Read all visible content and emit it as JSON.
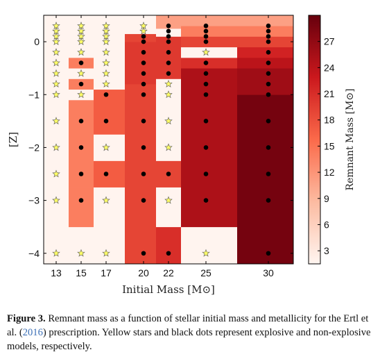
{
  "figure": {
    "caption_label": "Figure 3.",
    "caption_part1": "Remnant mass as a function of stellar initial mass and metallicity for the Ertl et al. (",
    "caption_citation": "2016",
    "caption_part2": ") prescription. Yellow stars and black dots represent explosive and non-explosive models, respectively."
  },
  "chart_data": {
    "type": "heatmap",
    "xlabel": "Initial Mass [M⊙]",
    "ylabel": "[Z]",
    "colorbar_label": "Remnant Mass [M⊙]",
    "colorbar_range": [
      1.5,
      30
    ],
    "colorbar_ticks": [
      3,
      6,
      9,
      12,
      15,
      18,
      21,
      24,
      27
    ],
    "colormap": [
      "#fff5f0",
      "#fcbba1",
      "#fb6a4a",
      "#cb181d",
      "#67000d"
    ],
    "x_ticks": [
      13,
      15,
      17,
      20,
      22,
      25,
      30
    ],
    "y_ticks": [
      0,
      -1,
      -2,
      -3,
      -4
    ],
    "xlim": [
      12,
      32
    ],
    "ylim": [
      -4.2,
      0.5
    ],
    "marker_colors": {
      "explosive": "#ffff66",
      "non_explosive": "#000000"
    },
    "columns": [
      {
        "mass": 13,
        "x0": 12,
        "x1": 14,
        "cells": [
          {
            "z0": -4.2,
            "z1": 0.5,
            "value": 1.6
          }
        ]
      },
      {
        "mass": 15,
        "x0": 14,
        "x1": 16,
        "cells": [
          {
            "z0": -4.2,
            "z1": -3.5,
            "value": 1.6
          },
          {
            "z0": -3.5,
            "z1": -2.75,
            "value": 14
          },
          {
            "z0": -2.75,
            "z1": -1.1,
            "value": 14
          },
          {
            "z0": -1.1,
            "z1": -0.9,
            "value": 1.6
          },
          {
            "z0": -0.9,
            "z1": -0.7,
            "value": 14
          },
          {
            "z0": -0.7,
            "z1": -0.5,
            "value": 1.6
          },
          {
            "z0": -0.5,
            "z1": -0.3,
            "value": 14
          },
          {
            "z0": -0.3,
            "z1": 0.5,
            "value": 1.6
          }
        ]
      },
      {
        "mass": 17,
        "x0": 16,
        "x1": 18.5,
        "cells": [
          {
            "z0": -4.2,
            "z1": -2.75,
            "value": 1.6
          },
          {
            "z0": -2.75,
            "z1": -2.25,
            "value": 17
          },
          {
            "z0": -2.25,
            "z1": -1.75,
            "value": 1.6
          },
          {
            "z0": -1.75,
            "z1": -0.9,
            "value": 17
          },
          {
            "z0": -0.9,
            "z1": 0.5,
            "value": 1.6
          }
        ]
      },
      {
        "mass": 20,
        "x0": 18.5,
        "x1": 21,
        "cells": [
          {
            "z0": -4.2,
            "z1": -0.8,
            "value": 19
          },
          {
            "z0": -0.8,
            "z1": 0.0,
            "value": 20
          },
          {
            "z0": 0.0,
            "z1": 0.15,
            "value": 19
          },
          {
            "z0": 0.15,
            "z1": 0.5,
            "value": 1.6
          }
        ]
      },
      {
        "mass": 22,
        "x0": 21,
        "x1": 23,
        "cells": [
          {
            "z0": -4.2,
            "z1": -3.5,
            "value": 21
          },
          {
            "z0": -3.5,
            "z1": -2.75,
            "value": 1.6
          },
          {
            "z0": -2.75,
            "z1": -2.25,
            "value": 19
          },
          {
            "z0": -2.25,
            "z1": -0.7,
            "value": 1.6
          },
          {
            "z0": -0.7,
            "z1": 0.1,
            "value": 20
          },
          {
            "z0": 0.1,
            "z1": 0.25,
            "value": 1.6
          },
          {
            "z0": 0.25,
            "z1": 0.5,
            "value": 11
          }
        ]
      },
      {
        "mass": 25,
        "x0": 23,
        "x1": 27.5,
        "cells": [
          {
            "z0": -4.2,
            "z1": -3.5,
            "value": 1.6
          },
          {
            "z0": -3.5,
            "z1": -0.5,
            "value": 25
          },
          {
            "z0": -0.5,
            "z1": -0.3,
            "value": 21
          },
          {
            "z0": -0.3,
            "z1": -0.1,
            "value": 1.6
          },
          {
            "z0": -0.1,
            "z1": 0.1,
            "value": 19
          },
          {
            "z0": 0.1,
            "z1": 0.3,
            "value": 14
          },
          {
            "z0": 0.3,
            "z1": 0.5,
            "value": 11
          }
        ]
      },
      {
        "mass": 30,
        "x0": 27.5,
        "x1": 32,
        "cells": [
          {
            "z0": -4.2,
            "z1": -1.0,
            "value": 29
          },
          {
            "z0": -1.0,
            "z1": -0.5,
            "value": 26
          },
          {
            "z0": -0.5,
            "z1": -0.3,
            "value": 24
          },
          {
            "z0": -0.3,
            "z1": -0.1,
            "value": 22
          },
          {
            "z0": -0.1,
            "z1": 0.1,
            "value": 19
          },
          {
            "z0": 0.1,
            "z1": 0.3,
            "value": 14
          },
          {
            "z0": 0.3,
            "z1": 0.5,
            "value": 11
          }
        ]
      }
    ],
    "markers": [
      {
        "mass": 13,
        "explosive": [
          0.3,
          0.2,
          0.1,
          0.0,
          -0.2,
          -0.4,
          -0.6,
          -0.8,
          -1.0,
          -1.5,
          -2.0,
          -2.5,
          -3.0,
          -4.0
        ],
        "non_explosive": []
      },
      {
        "mass": 15,
        "explosive": [
          0.3,
          0.2,
          0.1,
          0.0,
          -0.2,
          -0.6,
          -1.0,
          -4.0
        ],
        "non_explosive": [
          -0.4,
          -0.8,
          -1.5,
          -2.0,
          -2.5,
          -3.0
        ]
      },
      {
        "mass": 17,
        "explosive": [
          0.3,
          0.2,
          0.1,
          0.0,
          -0.2,
          -0.4,
          -0.6,
          -0.8,
          -2.0,
          -3.0,
          -4.0
        ],
        "non_explosive": [
          -1.0,
          -1.5,
          -2.5
        ]
      },
      {
        "mass": 20,
        "explosive": [
          0.3,
          0.2
        ],
        "non_explosive": [
          0.1,
          0.0,
          -0.2,
          -0.4,
          -0.6,
          -0.8,
          -1.0,
          -1.5,
          -2.0,
          -2.5,
          -3.0,
          -4.0
        ]
      },
      {
        "mass": 22,
        "explosive": [
          -0.8,
          -1.0,
          -1.5,
          -2.0,
          -3.0
        ],
        "non_explosive": [
          0.3,
          0.2,
          0.1,
          0.0,
          -0.2,
          -0.4,
          -0.6,
          -2.5,
          -4.0
        ]
      },
      {
        "mass": 25,
        "explosive": [
          -0.2,
          -4.0
        ],
        "non_explosive": [
          0.3,
          0.2,
          0.1,
          0.0,
          -0.4,
          -0.6,
          -0.8,
          -1.0,
          -1.5,
          -2.0,
          -2.5,
          -3.0
        ]
      },
      {
        "mass": 30,
        "explosive": [],
        "non_explosive": [
          0.3,
          0.2,
          0.1,
          0.0,
          -0.2,
          -0.4,
          -0.6,
          -0.8,
          -1.0,
          -1.5,
          -2.0,
          -2.5,
          -3.0,
          -4.0
        ]
      }
    ]
  }
}
